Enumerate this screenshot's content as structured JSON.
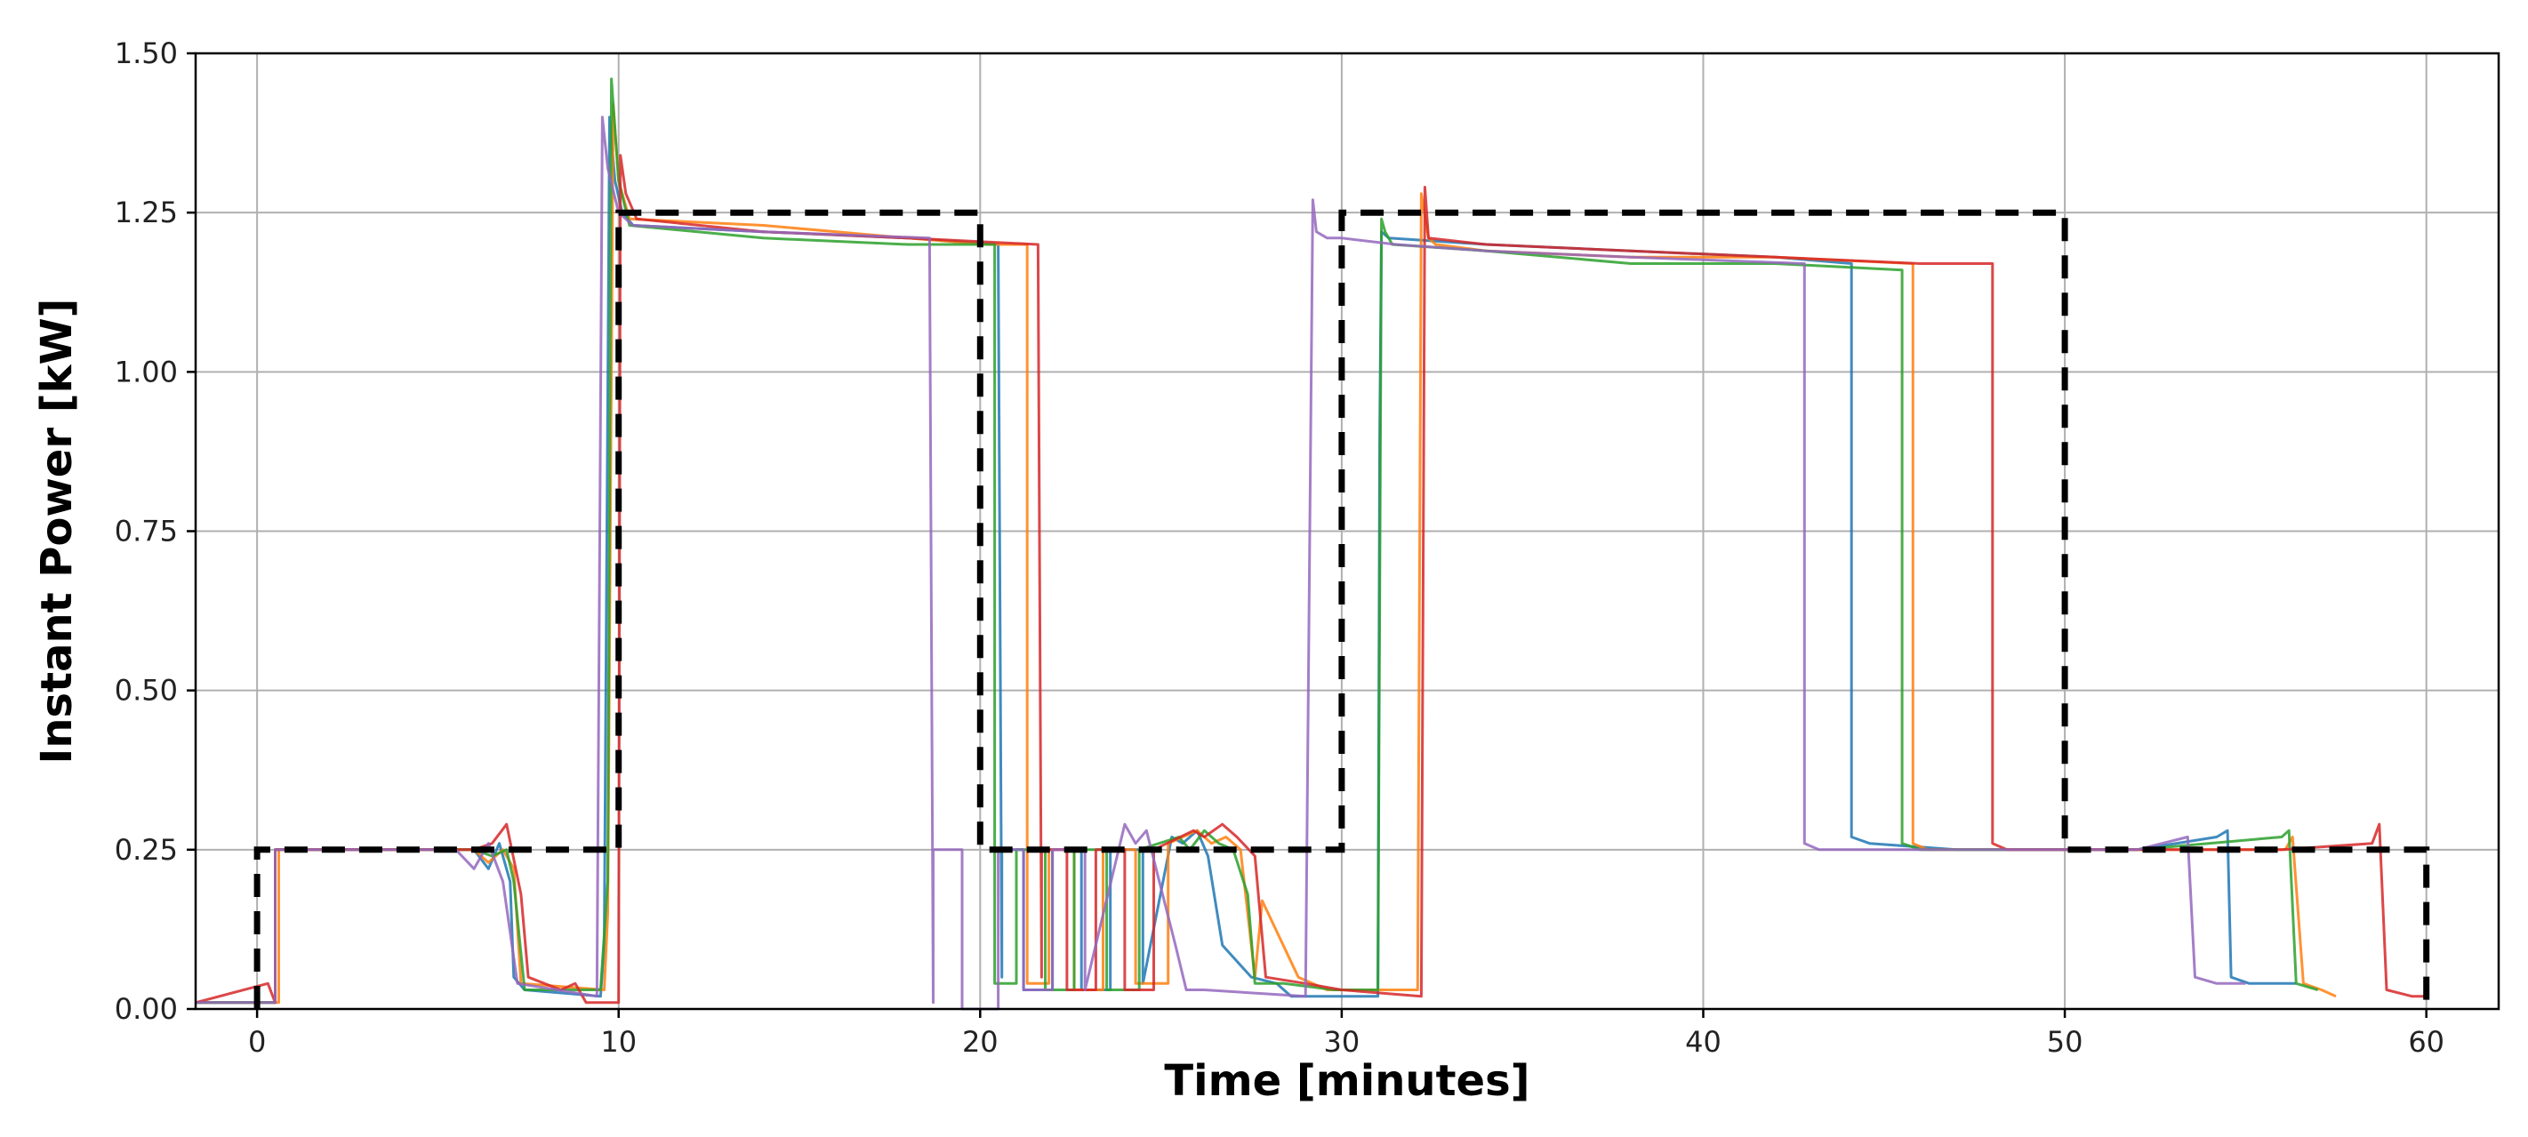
{
  "chart_data": {
    "type": "line",
    "xlabel": "Time [minutes]",
    "ylabel": "Instant Power [kW]",
    "xlim": [
      -1.7,
      62
    ],
    "ylim": [
      0,
      1.5
    ],
    "xticks": [
      "0",
      "10",
      "20",
      "30",
      "40",
      "50",
      "60"
    ],
    "xtick_values": [
      0,
      10,
      20,
      30,
      40,
      50,
      60
    ],
    "yticks": [
      "0.00",
      "0.25",
      "0.50",
      "0.75",
      "1.00",
      "1.25",
      "1.50"
    ],
    "ytick_values": [
      0,
      0.25,
      0.5,
      0.75,
      1.0,
      1.25,
      1.5
    ],
    "grid": true,
    "reference": {
      "style": "dashed",
      "color": "#000000",
      "x": [
        0,
        0,
        10,
        10,
        20,
        20,
        30,
        30,
        50,
        50,
        60,
        60
      ],
      "y": [
        0,
        0.25,
        0.25,
        1.25,
        1.25,
        0.25,
        0.25,
        1.25,
        1.25,
        0.25,
        0.25,
        0
      ]
    },
    "series": [
      {
        "color": "#1f77b4",
        "x": [
          -1.7,
          0.5,
          0.5,
          6,
          6.4,
          6.7,
          7,
          7.1,
          7.4,
          9.5,
          9.6,
          9.75,
          9.9,
          10.1,
          10.4,
          14,
          18,
          20.5,
          20.6,
          20.6,
          21.2,
          21.2,
          22.0,
          22.0,
          22.8,
          22.8,
          23.6,
          23.6,
          24.5,
          24.5,
          25.3,
          25.6,
          26.0,
          26.3,
          26.7,
          27.5,
          28.2,
          28.6,
          29.5,
          31.0,
          31.05,
          31.1,
          31.3,
          34,
          38,
          42,
          44.1,
          44.1,
          44.6,
          47,
          48,
          50,
          52,
          54.2,
          54.5,
          54.6,
          55.1,
          56.4
        ],
        "y": [
          0.01,
          0.01,
          0.25,
          0.25,
          0.22,
          0.26,
          0.2,
          0.05,
          0.03,
          0.02,
          0.1,
          1.4,
          1.3,
          1.25,
          1.23,
          1.22,
          1.21,
          1.2,
          0.05,
          0.25,
          0.25,
          0.03,
          0.03,
          0.25,
          0.25,
          0.03,
          0.03,
          0.25,
          0.25,
          0.04,
          0.27,
          0.26,
          0.28,
          0.24,
          0.1,
          0.05,
          0.04,
          0.02,
          0.02,
          0.02,
          0.9,
          1.22,
          1.21,
          1.2,
          1.19,
          1.18,
          1.17,
          0.27,
          0.26,
          0.25,
          0.25,
          0.25,
          0.25,
          0.27,
          0.28,
          0.05,
          0.04,
          0.04
        ]
      },
      {
        "color": "#ff7f0e",
        "x": [
          -1.7,
          0.6,
          0.6,
          6,
          6.4,
          6.8,
          7.1,
          7.3,
          9.6,
          9.7,
          9.85,
          10.0,
          10.3,
          14,
          18,
          20.2,
          21.3,
          21.3,
          21.9,
          21.9,
          22.6,
          22.6,
          23.4,
          23.4,
          24.3,
          24.3,
          25.2,
          25.2,
          26.0,
          26.4,
          26.8,
          27.2,
          27.6,
          27.8,
          28.8,
          29.6,
          32.1,
          32.2,
          32.4,
          32.6,
          34,
          38,
          42,
          45.8,
          45.8,
          46.2,
          48,
          50,
          52,
          56.1,
          56.3,
          56.6,
          57.1,
          57.5
        ],
        "y": [
          0.01,
          0.01,
          0.25,
          0.25,
          0.23,
          0.25,
          0.22,
          0.04,
          0.03,
          0.15,
          1.42,
          1.3,
          1.24,
          1.23,
          1.21,
          1.2,
          1.2,
          0.04,
          0.04,
          0.25,
          0.25,
          0.03,
          0.03,
          0.25,
          0.25,
          0.04,
          0.04,
          0.26,
          0.28,
          0.26,
          0.27,
          0.25,
          0.05,
          0.17,
          0.05,
          0.03,
          0.03,
          1.28,
          1.21,
          1.2,
          1.19,
          1.18,
          1.18,
          1.17,
          0.26,
          0.25,
          0.25,
          0.25,
          0.25,
          0.25,
          0.27,
          0.04,
          0.03,
          0.02
        ]
      },
      {
        "color": "#2ca02c",
        "x": [
          -1.7,
          0.5,
          0.5,
          6,
          6.5,
          6.9,
          7.1,
          7.4,
          9.5,
          9.7,
          9.8,
          10.0,
          10.3,
          14,
          18,
          20.4,
          20.4,
          21.0,
          21.0,
          21.8,
          21.8,
          22.6,
          22.6,
          23.5,
          23.5,
          24.4,
          24.4,
          25.5,
          25.8,
          26.2,
          26.6,
          27.0,
          27.4,
          27.6,
          28.4,
          29.8,
          31.0,
          31.1,
          31.2,
          31.4,
          34,
          38,
          42,
          45.5,
          45.5,
          46.0,
          48,
          50,
          52,
          56.0,
          56.2,
          56.4,
          57.0
        ],
        "y": [
          0.01,
          0.01,
          0.25,
          0.25,
          0.24,
          0.25,
          0.2,
          0.03,
          0.03,
          0.2,
          1.46,
          1.3,
          1.23,
          1.21,
          1.2,
          1.2,
          0.04,
          0.04,
          0.25,
          0.25,
          0.03,
          0.03,
          0.25,
          0.25,
          0.03,
          0.03,
          0.25,
          0.27,
          0.25,
          0.28,
          0.26,
          0.25,
          0.18,
          0.04,
          0.04,
          0.03,
          0.03,
          1.24,
          1.22,
          1.2,
          1.19,
          1.17,
          1.17,
          1.16,
          0.26,
          0.25,
          0.25,
          0.25,
          0.25,
          0.27,
          0.28,
          0.04,
          0.03
        ]
      },
      {
        "color": "#d62728",
        "x": [
          -1.7,
          0.3,
          0.5,
          0.5,
          6,
          6.5,
          6.9,
          7.3,
          7.5,
          8.4,
          8.8,
          9.1,
          9.6,
          10.0,
          10.05,
          10.2,
          10.5,
          14,
          18,
          21.6,
          21.7,
          21.7,
          22.4,
          22.4,
          23.2,
          23.2,
          24.0,
          24.0,
          24.8,
          24.8,
          25.9,
          26.2,
          26.7,
          27.1,
          27.6,
          27.9,
          29.0,
          30.0,
          32.2,
          32.3,
          32.4,
          34,
          38,
          42,
          46,
          48.0,
          48.0,
          48.4,
          50,
          52,
          56,
          58.5,
          58.7,
          58.9,
          59.6,
          60.0
        ],
        "y": [
          0.01,
          0.04,
          0.01,
          0.25,
          0.25,
          0.26,
          0.29,
          0.18,
          0.05,
          0.03,
          0.04,
          0.01,
          0.01,
          0.01,
          1.34,
          1.28,
          1.24,
          1.22,
          1.21,
          1.2,
          0.05,
          0.25,
          0.25,
          0.03,
          0.03,
          0.25,
          0.25,
          0.03,
          0.03,
          0.25,
          0.28,
          0.27,
          0.29,
          0.27,
          0.24,
          0.05,
          0.04,
          0.03,
          0.02,
          1.29,
          1.21,
          1.2,
          1.19,
          1.18,
          1.17,
          1.17,
          0.26,
          0.25,
          0.25,
          0.25,
          0.25,
          0.26,
          0.29,
          0.03,
          0.02,
          0.02
        ]
      },
      {
        "color": "#9467bd",
        "x": [
          -1.7,
          0.5,
          0.5,
          5.5,
          6.0,
          6.4,
          6.8,
          7.2,
          9.4,
          9.55,
          9.7,
          10.0,
          10.4,
          14,
          18.6,
          18.7,
          18.7,
          19.5,
          19.5,
          20.5,
          20.5,
          21.2,
          21.2,
          22.0,
          22.0,
          22.9,
          22.9,
          24.0,
          24.3,
          24.6,
          25.4,
          25.7,
          26.2,
          29.0,
          29.2,
          29.3,
          29.6,
          30.0,
          31.5,
          34,
          38,
          42.8,
          42.8,
          43.2,
          46,
          48,
          50,
          52,
          53.4,
          53.6,
          54.2,
          55.0
        ],
        "y": [
          0.01,
          0.01,
          0.25,
          0.25,
          0.22,
          0.26,
          0.2,
          0.04,
          0.02,
          1.4,
          1.32,
          1.25,
          1.23,
          1.22,
          1.21,
          0.01,
          0.25,
          0.25,
          0.0,
          0.0,
          0.25,
          0.25,
          0.03,
          0.03,
          0.25,
          0.25,
          0.03,
          0.29,
          0.26,
          0.28,
          0.1,
          0.03,
          0.03,
          0.02,
          1.27,
          1.22,
          1.21,
          1.21,
          1.2,
          1.19,
          1.18,
          1.17,
          0.26,
          0.25,
          0.25,
          0.25,
          0.25,
          0.25,
          0.27,
          0.05,
          0.04,
          0.04
        ]
      }
    ]
  }
}
